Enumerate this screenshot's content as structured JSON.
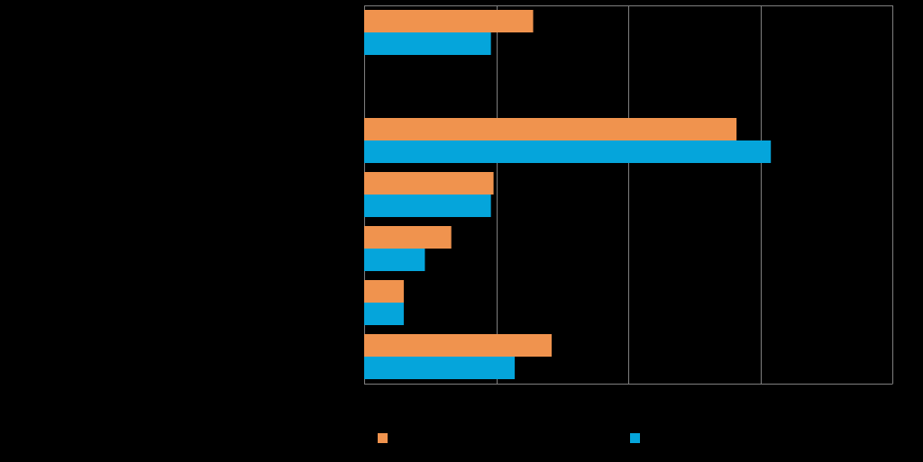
{
  "chart_data": {
    "type": "bar",
    "orientation": "horizontal",
    "categories": [
      "",
      "",
      "",
      "",
      "",
      "",
      ""
    ],
    "series": [
      {
        "name": "",
        "color": "#F0934E",
        "values": [
          0.64,
          null,
          1.41,
          0.49,
          0.33,
          0.15,
          0.71
        ]
      },
      {
        "name": "",
        "color": "#05A5DB",
        "values": [
          0.48,
          null,
          1.54,
          0.48,
          0.23,
          0.15,
          0.57
        ]
      }
    ],
    "xlim": [
      0,
      2
    ],
    "x_gridlines": [
      0,
      0.5,
      1,
      1.5,
      2
    ],
    "grid": true,
    "legend": "bottom",
    "background": "#000000",
    "gridline_color": "#7F7F7F",
    "title": "",
    "xlabel": "",
    "ylabel": ""
  }
}
